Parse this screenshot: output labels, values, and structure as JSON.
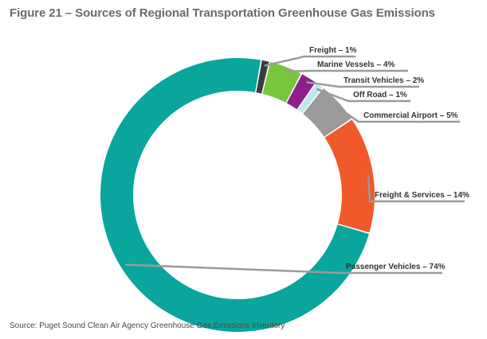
{
  "title": "Figure 21 – Sources of Regional Transportation Greenhouse Gas Emissions",
  "source": "Source: Puget Sound Clean Air Agency Greenhouse Gas Emissions Inventory",
  "chart_data": {
    "type": "pie",
    "variant": "donut",
    "legend": "none",
    "slices": [
      {
        "label": "Freight – 1%",
        "value": 1,
        "color": "#3a3d3e"
      },
      {
        "label": "Marine Vessels – 4%",
        "value": 4,
        "color": "#77c63c"
      },
      {
        "label": "Transit Vehicles – 2%",
        "value": 2,
        "color": "#8e1f8a"
      },
      {
        "label": "Off Road – 1%",
        "value": 1,
        "color": "#bfe6ec"
      },
      {
        "label": "Commercial Airport – 5%",
        "value": 5,
        "color": "#9b9b9b"
      },
      {
        "label": "Freight & Services – 14%",
        "value": 14,
        "color": "#f05a2a"
      },
      {
        "label": "Passenger Vehicles – 74%",
        "value": 74,
        "color": "#0aa59c"
      }
    ],
    "label_line_color": "#9a9a9a"
  }
}
